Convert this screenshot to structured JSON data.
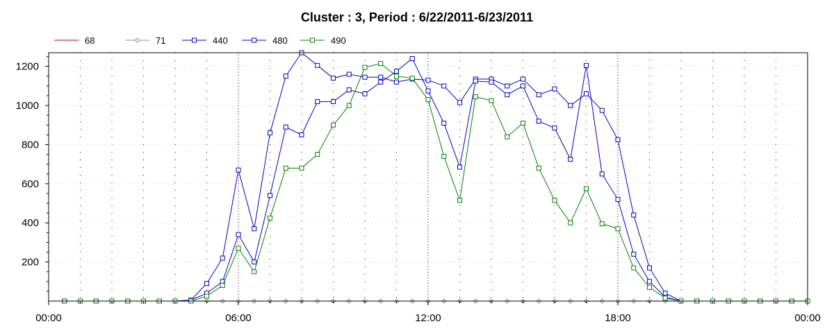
{
  "chart_data": {
    "type": "line",
    "title": "Cluster : 3, Period : 6/22/2011-6/23/2011",
    "xlabel": "",
    "ylabel": "",
    "x_ticks": [
      "00:00",
      "06:00",
      "12:00",
      "18:00",
      "00:00"
    ],
    "y_ticks": [
      200,
      400,
      600,
      800,
      1000,
      1200
    ],
    "xlim": [
      0,
      24
    ],
    "ylim": [
      0,
      1270
    ],
    "grid": true,
    "legend_position": "top-left",
    "x": [
      0.5,
      1,
      1.5,
      2,
      2.5,
      3,
      3.5,
      4,
      4.5,
      5,
      5.5,
      6,
      6.5,
      7,
      7.5,
      8,
      8.5,
      9,
      9.5,
      10,
      10.5,
      11,
      11.5,
      12,
      12.5,
      13,
      13.5,
      14,
      14.5,
      15,
      15.5,
      16,
      16.5,
      17,
      17.5,
      18,
      18.5,
      19,
      19.5,
      20,
      20.5,
      21,
      21.5,
      22,
      22.5,
      23,
      23.5,
      24
    ],
    "series": [
      {
        "name": "68",
        "color": "#c00000",
        "marker": "none",
        "values": [
          0,
          0,
          0,
          0,
          0,
          0,
          0,
          0,
          0,
          0,
          0,
          0,
          0,
          0,
          0,
          0,
          0,
          0,
          0,
          0,
          0,
          0,
          0,
          0,
          0,
          0,
          0,
          0,
          0,
          0,
          0,
          0,
          0,
          0,
          0,
          0,
          0,
          0,
          0,
          0,
          0,
          0,
          0,
          0,
          0,
          0,
          0,
          0
        ]
      },
      {
        "name": "71",
        "color": "#909090",
        "marker": "diamond",
        "values": [
          0,
          0,
          0,
          0,
          0,
          0,
          0,
          0,
          0,
          0,
          0,
          0,
          0,
          0,
          0,
          0,
          0,
          0,
          0,
          0,
          0,
          0,
          0,
          0,
          0,
          0,
          0,
          0,
          0,
          0,
          0,
          0,
          0,
          0,
          0,
          0,
          0,
          0,
          0,
          0,
          0,
          0,
          0,
          0,
          0,
          0,
          0,
          0
        ]
      },
      {
        "name": "440",
        "color": "#0000cc",
        "marker": "square",
        "values": [
          0,
          0,
          0,
          0,
          0,
          0,
          0,
          0,
          5,
          90,
          220,
          670,
          370,
          860,
          1150,
          1270,
          1205,
          1140,
          1160,
          1145,
          1145,
          1120,
          1135,
          1130,
          1100,
          1015,
          1135,
          1135,
          1100,
          1135,
          1055,
          1085,
          1000,
          1060,
          975,
          825,
          440,
          170,
          40,
          0,
          0,
          0,
          0,
          0,
          0,
          0,
          0,
          0
        ]
      },
      {
        "name": "480",
        "color": "#0000cc",
        "marker": "square",
        "values": [
          0,
          0,
          0,
          0,
          0,
          0,
          0,
          0,
          5,
          40,
          100,
          340,
          200,
          540,
          890,
          850,
          1020,
          1020,
          1080,
          1060,
          1120,
          1175,
          1240,
          1075,
          910,
          685,
          1125,
          1120,
          1055,
          1100,
          920,
          885,
          725,
          1205,
          650,
          520,
          240,
          100,
          20,
          0,
          0,
          0,
          0,
          0,
          0,
          0,
          0,
          0
        ]
      },
      {
        "name": "490",
        "color": "#008000",
        "marker": "square",
        "values": [
          0,
          0,
          0,
          0,
          0,
          0,
          0,
          0,
          0,
          25,
          80,
          270,
          150,
          425,
          680,
          680,
          750,
          900,
          1000,
          1195,
          1215,
          1150,
          1140,
          1030,
          740,
          515,
          1045,
          1025,
          840,
          910,
          680,
          515,
          400,
          575,
          395,
          370,
          170,
          70,
          15,
          0,
          0,
          0,
          0,
          0,
          0,
          0,
          0,
          0
        ]
      }
    ]
  }
}
